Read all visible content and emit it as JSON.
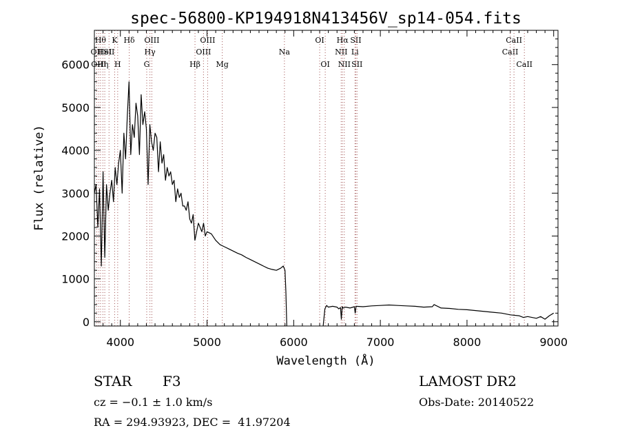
{
  "chart_data": {
    "type": "line",
    "title": "spec-56800-KP194918N413456V_sp14-054.fits",
    "xlabel": "Wavelength (Å)",
    "ylabel": "Flux (relative)",
    "xlim": [
      3700,
      9050
    ],
    "ylim": [
      -100,
      6800
    ],
    "x_ticks": [
      4000,
      5000,
      6000,
      7000,
      8000,
      9000
    ],
    "y_ticks": [
      0,
      1000,
      2000,
      3000,
      4000,
      5000,
      6000
    ],
    "grid": false,
    "series": [
      {
        "color": "#000000",
        "x": [
          3700,
          3720,
          3740,
          3760,
          3780,
          3800,
          3820,
          3840,
          3860,
          3880,
          3900,
          3920,
          3940,
          3960,
          3980,
          4000,
          4020,
          4040,
          4060,
          4080,
          4100,
          4120,
          4140,
          4160,
          4180,
          4200,
          4220,
          4240,
          4260,
          4280,
          4300,
          4320,
          4340,
          4360,
          4380,
          4400,
          4420,
          4440,
          4460,
          4480,
          4500,
          4520,
          4540,
          4560,
          4580,
          4600,
          4620,
          4640,
          4660,
          4680,
          4700,
          4720,
          4740,
          4760,
          4780,
          4800,
          4820,
          4840,
          4860,
          4880,
          4900,
          4920,
          4940,
          4960,
          4980,
          5000,
          5050,
          5100,
          5150,
          5200,
          5250,
          5300,
          5350,
          5400,
          5450,
          5500,
          5550,
          5600,
          5650,
          5700,
          5750,
          5800,
          5850,
          5880,
          5900,
          5910,
          5920
        ],
        "y": [
          3000,
          3200,
          2200,
          3100,
          1300,
          3500,
          1500,
          3200,
          2600,
          3000,
          3300,
          2800,
          3600,
          3200,
          3700,
          4000,
          3000,
          4400,
          3800,
          4800,
          5600,
          3900,
          4600,
          4300,
          5100,
          4800,
          3900,
          5300,
          4600,
          4900,
          4500,
          3200,
          4600,
          4200,
          4000,
          4400,
          4300,
          3500,
          4200,
          3700,
          3900,
          3300,
          3600,
          3400,
          3500,
          3200,
          3300,
          2800,
          3100,
          2900,
          3000,
          2700,
          2700,
          2600,
          2800,
          2400,
          2300,
          2500,
          1900,
          2100,
          2300,
          2200,
          2100,
          2300,
          2000,
          2100,
          2050,
          1900,
          1800,
          1750,
          1700,
          1650,
          1600,
          1560,
          1500,
          1450,
          1400,
          1350,
          1300,
          1250,
          1220,
          1200,
          1250,
          1300,
          1200,
          700,
          -100
        ]
      },
      {
        "color": "#000000",
        "x": [
          6340,
          6360,
          6380,
          6400,
          6450,
          6500,
          6520,
          6540,
          6550,
          6560,
          6570,
          6600,
          6650,
          6700,
          6710,
          6720,
          6800,
          6900,
          7000,
          7100,
          7200,
          7300,
          7400,
          7500,
          7600,
          7620,
          7700,
          7800,
          7900,
          8000,
          8100,
          8200,
          8300,
          8400,
          8500,
          8600,
          8650,
          8700,
          8800,
          8850,
          8900,
          8950,
          9000
        ],
        "y": [
          -100,
          300,
          380,
          340,
          360,
          340,
          300,
          330,
          60,
          350,
          320,
          340,
          320,
          350,
          200,
          360,
          350,
          370,
          380,
          390,
          380,
          370,
          360,
          340,
          350,
          400,
          320,
          310,
          290,
          280,
          260,
          240,
          220,
          200,
          160,
          140,
          100,
          120,
          80,
          120,
          60,
          140,
          200
        ]
      }
    ],
    "line_markers": [
      {
        "x": 3727,
        "label": "OII",
        "row": 2
      },
      {
        "x": 3750,
        "label": "OIII",
        "row": 3
      },
      {
        "x": 3771,
        "label": "Hθ",
        "row": 1
      },
      {
        "x": 3798,
        "label": "Hη",
        "row": 3
      },
      {
        "x": 3820,
        "label": "HeI",
        "row": 2
      },
      {
        "x": 3869,
        "label": "SII",
        "row": 2
      },
      {
        "x": 3934,
        "label": "K",
        "row": 1
      },
      {
        "x": 3969,
        "label": "H",
        "row": 3
      },
      {
        "x": 4102,
        "label": "Hδ",
        "row": 1
      },
      {
        "x": 4304,
        "label": "G",
        "row": 3
      },
      {
        "x": 4341,
        "label": "Hγ",
        "row": 2
      },
      {
        "x": 4363,
        "label": "OIII",
        "row": 1
      },
      {
        "x": 4861,
        "label": "Hβ",
        "row": 3
      },
      {
        "x": 4959,
        "label": "OIII",
        "row": 2
      },
      {
        "x": 5007,
        "label": "OIII",
        "row": 1
      },
      {
        "x": 5176,
        "label": "Mg",
        "row": 3
      },
      {
        "x": 5893,
        "label": "Na",
        "row": 2
      },
      {
        "x": 6300,
        "label": "OI",
        "row": 1
      },
      {
        "x": 6364,
        "label": "OI",
        "row": 3
      },
      {
        "x": 6548,
        "label": "NII",
        "row": 2
      },
      {
        "x": 6563,
        "label": "Hα",
        "row": 1
      },
      {
        "x": 6584,
        "label": "NII",
        "row": 3
      },
      {
        "x": 6707,
        "label": "Li",
        "row": 2
      },
      {
        "x": 6717,
        "label": "SII",
        "row": 1
      },
      {
        "x": 6731,
        "label": "SII",
        "row": 3
      },
      {
        "x": 8498,
        "label": "CaII",
        "row": 2
      },
      {
        "x": 8542,
        "label": "CaII",
        "row": 1
      },
      {
        "x": 8662,
        "label": "CaII",
        "row": 3
      }
    ]
  },
  "footer": {
    "class_label": "STAR",
    "subclass": "F3",
    "survey": "LAMOST DR2",
    "cz": "cz = −0.1 ± 1.0 km/s",
    "obs_date": "Obs-Date: 20140522",
    "coords": "RA = 294.93923, DEC =  41.97204"
  }
}
